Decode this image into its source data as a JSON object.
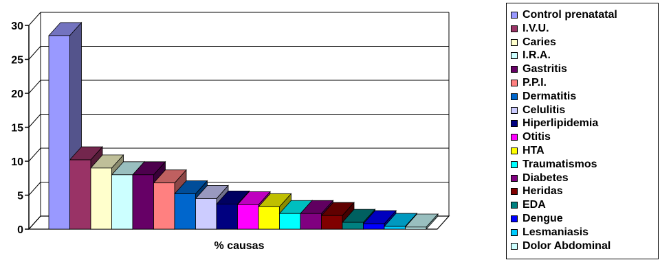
{
  "chart_data": {
    "type": "bar",
    "title": "",
    "xlabel": "% causas",
    "ylabel": "",
    "ylim": [
      0,
      30
    ],
    "yticks": [
      0,
      5,
      10,
      15,
      20,
      25,
      30
    ],
    "grid": true,
    "legend_position": "right",
    "style": "3d-column",
    "series": [
      {
        "name": "Control prenatatal",
        "value": 28.5,
        "color": "#9999FF"
      },
      {
        "name": "I.V.U.",
        "value": 10.2,
        "color": "#993366"
      },
      {
        "name": "Caries",
        "value": 9.0,
        "color": "#FFFFCC"
      },
      {
        "name": "I.R.A.",
        "value": 8.0,
        "color": "#CCFFFF"
      },
      {
        "name": "Gastritis",
        "value": 8.0,
        "color": "#660066"
      },
      {
        "name": "P.P.I.",
        "value": 6.8,
        "color": "#FF8080"
      },
      {
        "name": "Dermatitis",
        "value": 5.2,
        "color": "#0066CC"
      },
      {
        "name": "Celulitis",
        "value": 4.5,
        "color": "#CCCCFF"
      },
      {
        "name": "Hiperlipidemia",
        "value": 3.7,
        "color": "#000080"
      },
      {
        "name": "Otitis",
        "value": 3.6,
        "color": "#FF00FF"
      },
      {
        "name": "HTA",
        "value": 3.3,
        "color": "#FFFF00"
      },
      {
        "name": "Traumatismos",
        "value": 2.3,
        "color": "#00FFFF"
      },
      {
        "name": "Diabetes",
        "value": 2.3,
        "color": "#800080"
      },
      {
        "name": "Heridas",
        "value": 2.0,
        "color": "#800000"
      },
      {
        "name": "EDA",
        "value": 1.0,
        "color": "#008080"
      },
      {
        "name": "Dengue",
        "value": 0.8,
        "color": "#0000FF"
      },
      {
        "name": "Lesmaniasis",
        "value": 0.4,
        "color": "#00CCFF"
      },
      {
        "name": "Dolor Abdominal",
        "value": 0.3,
        "color": "#CCFFFF"
      }
    ]
  }
}
